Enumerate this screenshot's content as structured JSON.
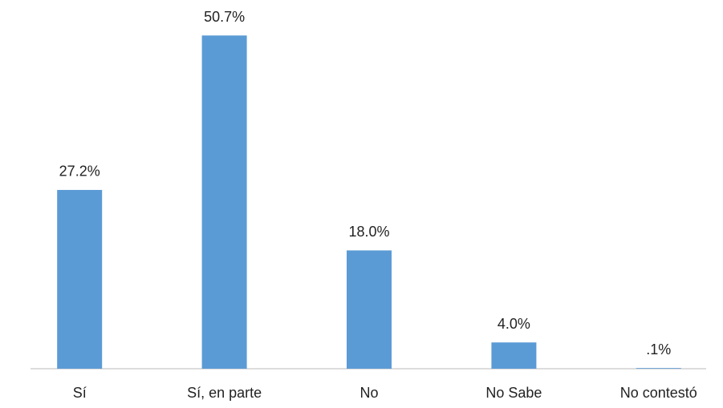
{
  "chart_data": {
    "type": "bar",
    "categories": [
      "Sí",
      "Sí, en parte",
      "No",
      "No Sabe",
      "No contestó"
    ],
    "values": [
      27.2,
      50.7,
      18.0,
      4.0,
      0.1
    ],
    "value_labels": [
      "27.2%",
      "50.7%",
      "18.0%",
      "4.0%",
      ".1%"
    ],
    "color": "#5b9bd5"
  }
}
